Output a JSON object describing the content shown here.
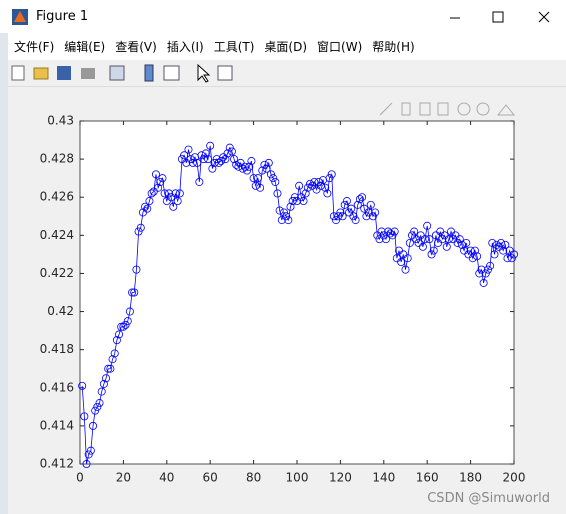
{
  "window": {
    "title": "Figure 1",
    "menu": [
      "文件(F)",
      "编辑(E)",
      "查看(V)",
      "插入(I)",
      "工具(T)",
      "桌面(D)",
      "窗口(W)",
      "帮助(H)"
    ]
  },
  "watermark": "CSDN @Simuworld",
  "chart_data": {
    "type": "line",
    "marker": "circle",
    "color": "#0000ff",
    "x": [
      1,
      2,
      3,
      4,
      5,
      6,
      7,
      8,
      9,
      10,
      11,
      12,
      13,
      14,
      15,
      16,
      17,
      18,
      19,
      20,
      21,
      22,
      23,
      24,
      25,
      26,
      27,
      28,
      29,
      30,
      31,
      32,
      33,
      34,
      35,
      36,
      37,
      38,
      39,
      40,
      41,
      42,
      43,
      44,
      45,
      46,
      47,
      48,
      49,
      50,
      51,
      52,
      53,
      54,
      55,
      56,
      57,
      58,
      59,
      60,
      61,
      62,
      63,
      64,
      65,
      66,
      67,
      68,
      69,
      70,
      71,
      72,
      73,
      74,
      75,
      76,
      77,
      78,
      79,
      80,
      81,
      82,
      83,
      84,
      85,
      86,
      87,
      88,
      89,
      90,
      91,
      92,
      93,
      94,
      95,
      96,
      97,
      98,
      99,
      100,
      101,
      102,
      103,
      104,
      105,
      106,
      107,
      108,
      109,
      110,
      111,
      112,
      113,
      114,
      115,
      116,
      117,
      118,
      119,
      120,
      121,
      122,
      123,
      124,
      125,
      126,
      127,
      128,
      129,
      130,
      131,
      132,
      133,
      134,
      135,
      136,
      137,
      138,
      139,
      140,
      141,
      142,
      143,
      144,
      145,
      146,
      147,
      148,
      149,
      150,
      151,
      152,
      153,
      154,
      155,
      156,
      157,
      158,
      159,
      160,
      161,
      162,
      163,
      164,
      165,
      166,
      167,
      168,
      169,
      170,
      171,
      172,
      173,
      174,
      175,
      176,
      177,
      178,
      179,
      180,
      181,
      182,
      183,
      184,
      185,
      186,
      187,
      188,
      189,
      190,
      191,
      192,
      193,
      194,
      195,
      196,
      197,
      198,
      199,
      200
    ],
    "values": [
      0.4161,
      0.4145,
      0.412,
      0.4125,
      0.4127,
      0.414,
      0.4148,
      0.415,
      0.4152,
      0.4158,
      0.4162,
      0.4165,
      0.417,
      0.417,
      0.4175,
      0.4178,
      0.4185,
      0.4188,
      0.4192,
      0.4192,
      0.4193,
      0.4195,
      0.42,
      0.421,
      0.421,
      0.4222,
      0.4242,
      0.4244,
      0.4252,
      0.4255,
      0.4254,
      0.4258,
      0.4262,
      0.4263,
      0.4272,
      0.4265,
      0.4268,
      0.427,
      0.4262,
      0.4258,
      0.4262,
      0.426,
      0.4255,
      0.4262,
      0.4258,
      0.4262,
      0.428,
      0.4282,
      0.4278,
      0.4285,
      0.428,
      0.4278,
      0.4281,
      0.4278,
      0.4268,
      0.4282,
      0.428,
      0.4283,
      0.428,
      0.4287,
      0.4275,
      0.4278,
      0.428,
      0.4278,
      0.4279,
      0.4281,
      0.428,
      0.4283,
      0.4286,
      0.4284,
      0.428,
      0.4277,
      0.4276,
      0.4278,
      0.4275,
      0.4276,
      0.4274,
      0.4276,
      0.4279,
      0.427,
      0.4266,
      0.427,
      0.4265,
      0.4274,
      0.4277,
      0.4275,
      0.4278,
      0.4272,
      0.427,
      0.4268,
      0.4262,
      0.4253,
      0.4248,
      0.4252,
      0.425,
      0.4248,
      0.4255,
      0.4258,
      0.426,
      0.4258,
      0.4266,
      0.426,
      0.4258,
      0.4262,
      0.4265,
      0.4267,
      0.4266,
      0.4268,
      0.4264,
      0.4268,
      0.4266,
      0.4269,
      0.4265,
      0.4262,
      0.427,
      0.4272,
      0.425,
      0.4248,
      0.425,
      0.4252,
      0.425,
      0.4256,
      0.4258,
      0.4252,
      0.4254,
      0.425,
      0.4248,
      0.4256,
      0.4259,
      0.426,
      0.4254,
      0.425,
      0.4252,
      0.4256,
      0.425,
      0.4252,
      0.424,
      0.4238,
      0.4242,
      0.424,
      0.4238,
      0.4242,
      0.4241,
      0.424,
      0.4242,
      0.4228,
      0.4232,
      0.4226,
      0.423,
      0.4222,
      0.4228,
      0.4236,
      0.424,
      0.4242,
      0.4238,
      0.4236,
      0.424,
      0.4234,
      0.4238,
      0.4245,
      0.4238,
      0.423,
      0.4232,
      0.424,
      0.4236,
      0.4242,
      0.4238,
      0.424,
      0.4234,
      0.4238,
      0.4242,
      0.4238,
      0.424,
      0.4236,
      0.4238,
      0.4235,
      0.4232,
      0.4236,
      0.423,
      0.4232,
      0.4228,
      0.4232,
      0.4229,
      0.422,
      0.4222,
      0.4215,
      0.422,
      0.4222,
      0.4224,
      0.4236,
      0.423,
      0.4235,
      0.4234,
      0.4236,
      0.4232,
      0.4235,
      0.4228,
      0.4232,
      0.4228,
      0.423
    ],
    "xlim": [
      0,
      200
    ],
    "xticks": [
      0,
      20,
      40,
      60,
      80,
      100,
      120,
      140,
      160,
      180,
      200
    ],
    "ylim": [
      0.412,
      0.43
    ],
    "yticks": [
      0.412,
      0.414,
      0.416,
      0.418,
      0.42,
      0.422,
      0.424,
      0.426,
      0.428,
      0.43
    ]
  }
}
